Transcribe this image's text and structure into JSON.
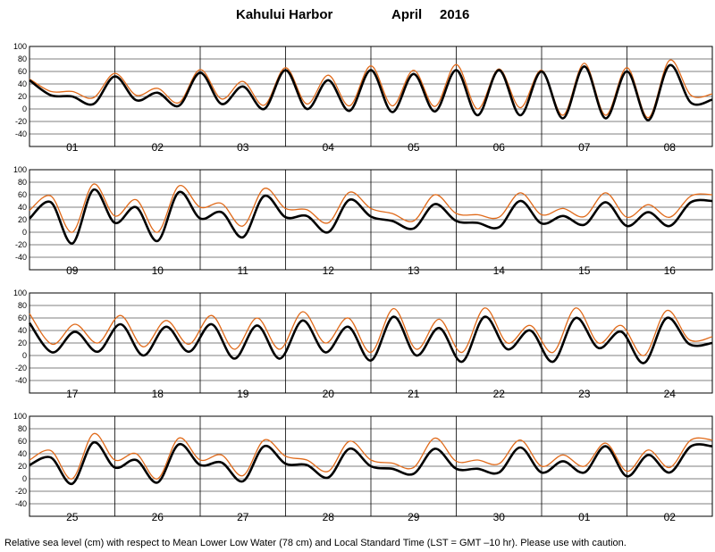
{
  "header": {
    "station": "Kahului Harbor",
    "month": "April",
    "year": "2016"
  },
  "footer": "Relative sea level (cm) with respect to Mean Lower Low Water (78 cm) and Local Standard Time (LST = GMT –10 hr). Please use with caution.",
  "colors": {
    "predicted": "#000000",
    "observed": "#e06a1a",
    "grid": "#000000"
  },
  "chart_data": {
    "type": "line",
    "ylim": [
      -40,
      100
    ],
    "yticks": [
      100,
      80,
      60,
      40,
      20,
      0,
      -20,
      -40
    ],
    "grid": true,
    "series_names": [
      "predicted",
      "observed"
    ],
    "panels": [
      {
        "days": [
          "01",
          "02",
          "03",
          "04",
          "05",
          "06",
          "07",
          "08"
        ],
        "predicted": [
          46,
          22,
          20,
          8,
          52,
          14,
          26,
          5,
          58,
          8,
          36,
          0,
          62,
          0,
          46,
          -3,
          62,
          -5,
          56,
          -4,
          62,
          -10,
          62,
          -10,
          60,
          -15,
          68,
          -15,
          60,
          -18,
          70,
          10,
          15
        ],
        "observed": [
          48,
          28,
          28,
          18,
          57,
          22,
          33,
          10,
          63,
          16,
          44,
          6,
          66,
          8,
          54,
          5,
          69,
          5,
          62,
          4,
          71,
          0,
          64,
          2,
          62,
          -10,
          73,
          -10,
          66,
          -14,
          78,
          22,
          24
        ]
      },
      {
        "days": [
          "09",
          "10",
          "11",
          "12",
          "13",
          "14",
          "15",
          "16"
        ],
        "predicted": [
          22,
          48,
          -18,
          68,
          15,
          40,
          -14,
          64,
          22,
          32,
          -8,
          58,
          24,
          26,
          0,
          52,
          25,
          18,
          6,
          45,
          18,
          15,
          8,
          50,
          14,
          26,
          12,
          48,
          10,
          32,
          10,
          48,
          50
        ],
        "observed": [
          35,
          58,
          0,
          77,
          26,
          52,
          0,
          74,
          40,
          46,
          10,
          70,
          38,
          36,
          15,
          64,
          38,
          30,
          18,
          60,
          30,
          28,
          24,
          63,
          28,
          38,
          25,
          63,
          24,
          44,
          24,
          58,
          60
        ]
      },
      {
        "days": [
          "17",
          "18",
          "19",
          "20",
          "21",
          "22",
          "23",
          "24"
        ],
        "predicted": [
          52,
          5,
          38,
          6,
          50,
          0,
          46,
          6,
          50,
          -5,
          48,
          -5,
          56,
          5,
          46,
          -8,
          62,
          0,
          44,
          -10,
          62,
          10,
          40,
          -10,
          60,
          12,
          38,
          -12,
          60,
          18,
          20
        ],
        "observed": [
          67,
          18,
          50,
          20,
          64,
          14,
          56,
          18,
          64,
          10,
          60,
          10,
          70,
          20,
          60,
          5,
          75,
          10,
          58,
          5,
          76,
          20,
          48,
          5,
          76,
          20,
          48,
          0,
          72,
          25,
          30
        ]
      },
      {
        "days": [
          "25",
          "26",
          "27",
          "28",
          "29",
          "30",
          "01",
          "02"
        ],
        "predicted": [
          22,
          34,
          -8,
          58,
          18,
          30,
          -6,
          55,
          22,
          26,
          -4,
          52,
          24,
          22,
          2,
          48,
          20,
          16,
          8,
          48,
          16,
          16,
          10,
          50,
          10,
          28,
          10,
          52,
          4,
          38,
          10,
          52,
          52
        ],
        "observed": [
          30,
          45,
          0,
          72,
          30,
          40,
          0,
          65,
          30,
          38,
          5,
          62,
          36,
          30,
          12,
          60,
          30,
          25,
          18,
          65,
          28,
          30,
          24,
          62,
          20,
          38,
          20,
          57,
          12,
          46,
          18,
          62,
          62
        ]
      }
    ]
  }
}
